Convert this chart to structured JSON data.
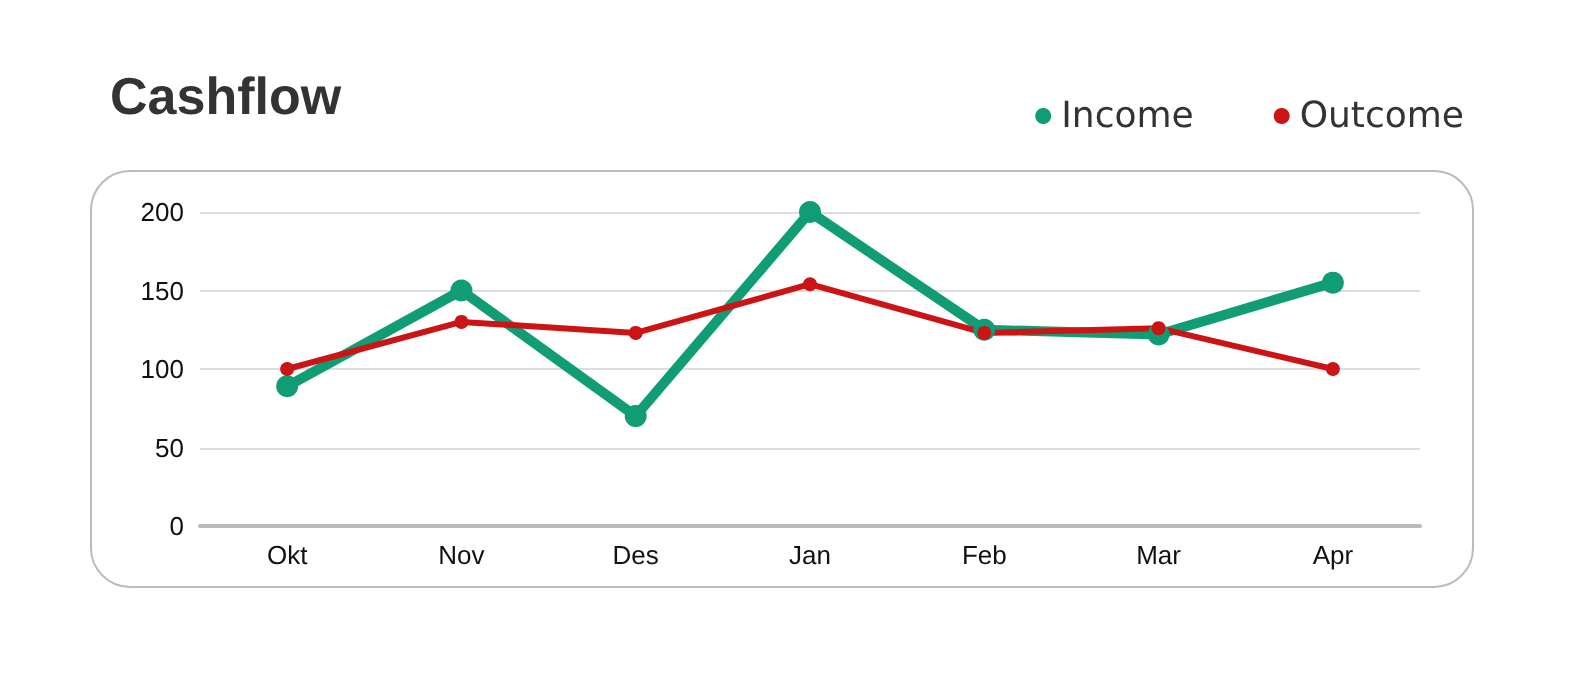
{
  "chart_data": {
    "type": "line",
    "title": "Cashflow",
    "categories": [
      "Okt",
      "Nov",
      "Des",
      "Jan",
      "Feb",
      "Mar",
      "Apr"
    ],
    "series": [
      {
        "name": "Income",
        "color": "#109c74",
        "values": [
          89,
          150,
          70,
          200,
          125,
          122,
          155
        ]
      },
      {
        "name": "Outcome",
        "color": "#cc1414",
        "values": [
          100,
          130,
          123,
          154,
          123,
          126,
          100
        ]
      }
    ],
    "ylim": [
      0,
      200
    ],
    "yticks": [
      0,
      50,
      100,
      150,
      200
    ],
    "grid": "y",
    "legend": "top right",
    "marker": "circle",
    "line_style": "solid"
  }
}
